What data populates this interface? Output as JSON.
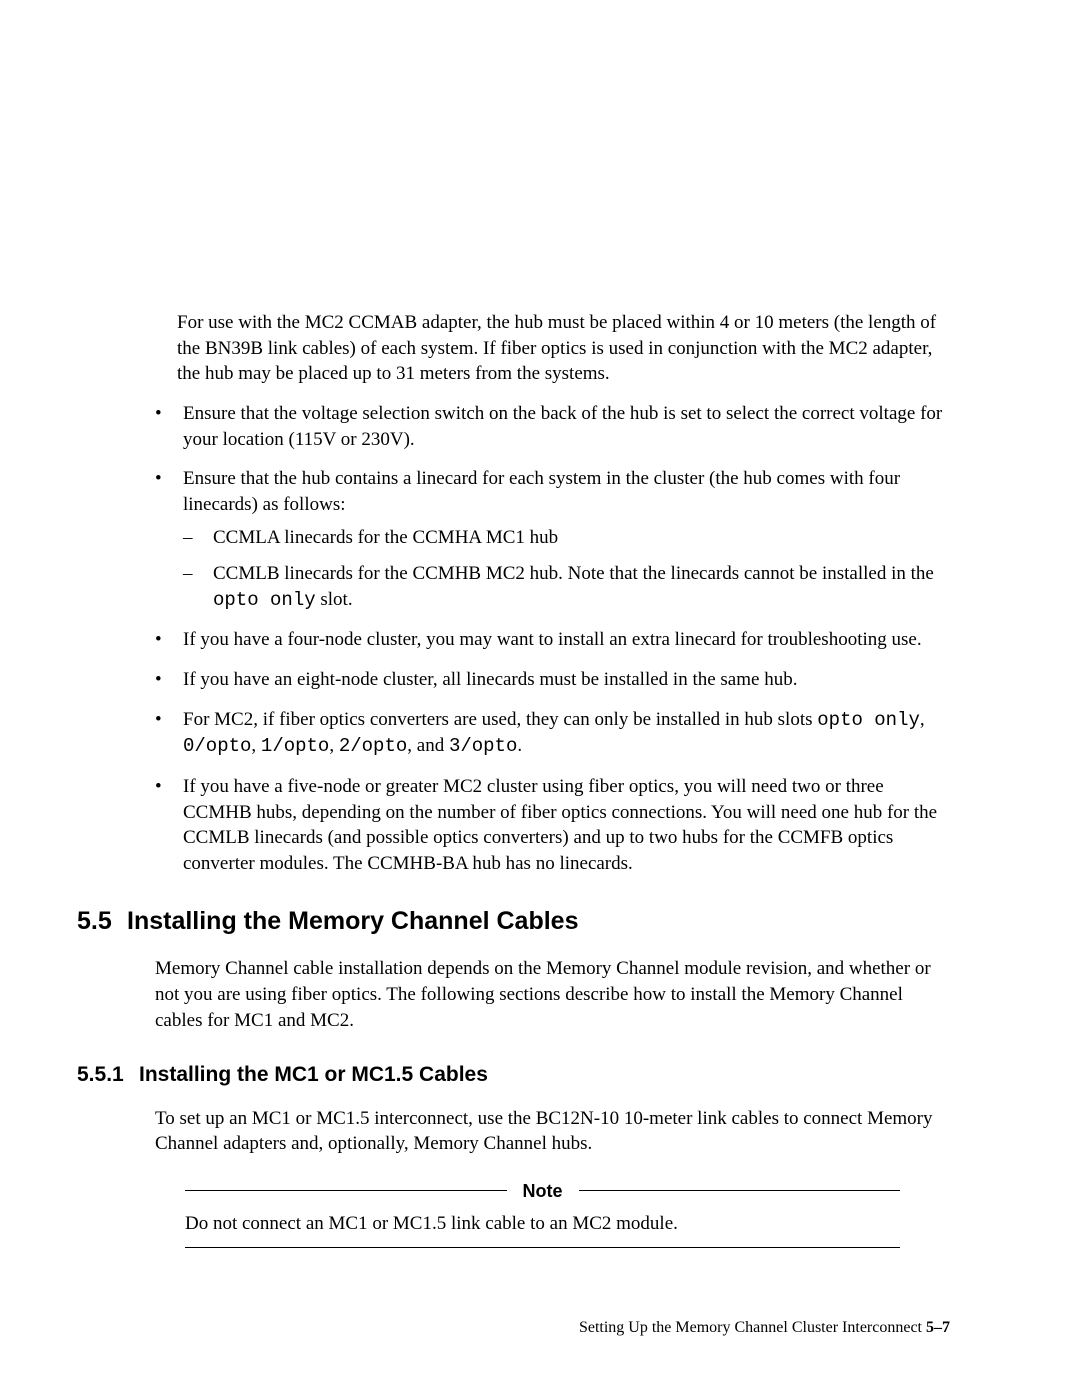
{
  "intro": "For use with the MC2 CCMAB adapter, the hub must be placed within 4 or 10 meters (the length of the BN39B link cables) of each system. If fiber optics is used in conjunction with the MC2 adapter, the hub may be placed up to 31 meters from the systems.",
  "bullets": {
    "b0": "Ensure that the voltage selection switch on the back of the hub is set to select the correct voltage for your location (115V or 230V).",
    "b1": "Ensure that the hub contains a linecard for each system in the cluster (the hub comes with four linecards) as follows:",
    "b1_sub0": "CCMLA linecards for the CCMHA MC1 hub",
    "b1_sub1a": "CCMLB linecards for the CCMHB MC2 hub. Note that the linecards cannot be installed in the ",
    "b1_sub1_code": "opto only",
    "b1_sub1b": " slot.",
    "b2": "If you have a four-node cluster, you may want to install an extra linecard for troubleshooting use.",
    "b3": "If you have an eight-node cluster, all linecards must be installed in the same hub.",
    "b4a": "For MC2, if fiber optics converters are used, they can only be installed in hub slots ",
    "b4_c1": "opto only",
    "b4_s1": ", ",
    "b4_c2": "0/opto",
    "b4_s2": ", ",
    "b4_c3": "1/opto",
    "b4_s3": ", ",
    "b4_c4": "2/opto",
    "b4_s4": ", and ",
    "b4_c5": "3/opto",
    "b4_s5": ".",
    "b5": "If you have a five-node or greater MC2 cluster using fiber optics, you will need two or three CCMHB hubs, depending on the number of fiber optics connections. You will need one hub for the CCMLB linecards (and possible optics converters) and up to two hubs for the CCMFB optics converter modules. The CCMHB-BA hub has no linecards."
  },
  "h1": {
    "num": "5.5",
    "title": "Installing the Memory Channel Cables"
  },
  "h1_para": "Memory Channel cable installation depends on the Memory Channel module revision, and whether or not you are using fiber optics. The following sections describe how to install the Memory Channel cables for MC1 and MC2.",
  "h2": {
    "num": "5.5.1",
    "title": "Installing the MC1 or MC1.5 Cables"
  },
  "h2_para": "To set up an MC1 or MC1.5 interconnect, use the BC12N-10 10-meter link cables to connect Memory Channel adapters and, optionally, Memory Channel hubs.",
  "note": {
    "label": "Note",
    "body": "Do not connect an MC1 or MC1.5 link cable to an MC2 module."
  },
  "footer": {
    "text": "Setting Up the Memory Channel Cluster Interconnect  ",
    "page": "5–7"
  }
}
